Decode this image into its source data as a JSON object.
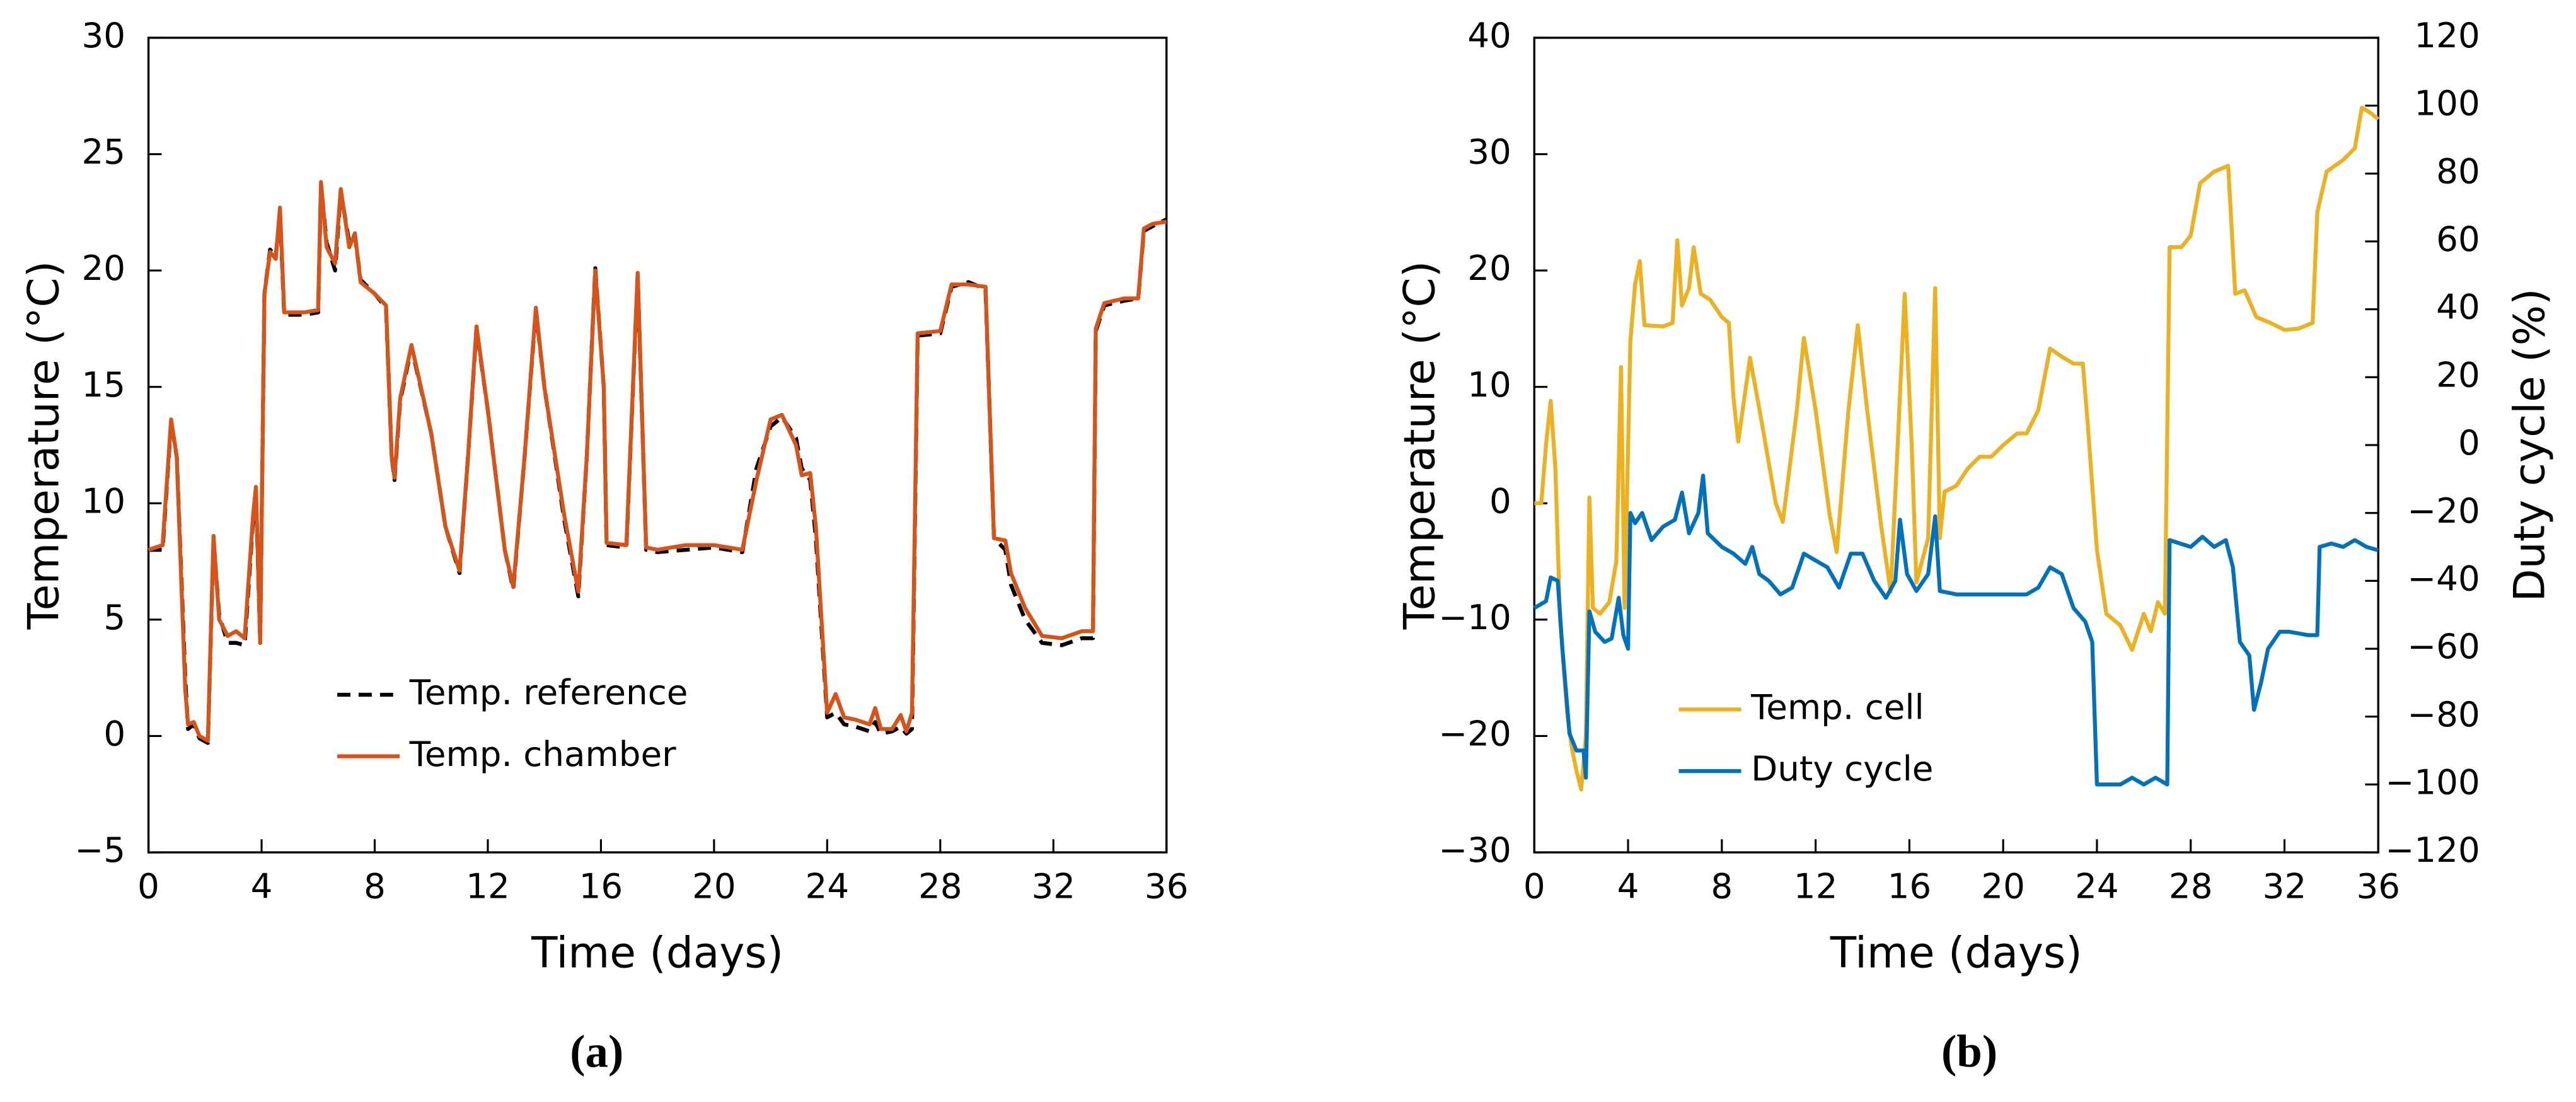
{
  "chart_data": [
    {
      "type": "line",
      "label": "(a)",
      "xlabel": "Time (days)",
      "ylabel": "Temperature (°C)",
      "xlim": [
        0,
        36
      ],
      "xticks": [
        0,
        4,
        8,
        12,
        16,
        20,
        24,
        28,
        32,
        36
      ],
      "ylim": [
        -5,
        30
      ],
      "yticks": [
        {
          "value": -5,
          "label": "−5"
        },
        0,
        5,
        10,
        15,
        20,
        25,
        30
      ],
      "x": [
        0,
        0.5,
        0.8,
        1.0,
        1.3,
        1.4,
        1.6,
        1.8,
        2.1,
        2.3,
        2.5,
        2.8,
        3.1,
        3.4,
        3.7,
        3.8,
        3.95,
        4.1,
        4.3,
        4.5,
        4.65,
        4.8,
        5.5,
        6.0,
        6.1,
        6.3,
        6.6,
        6.8,
        7.1,
        7.3,
        7.5,
        8.0,
        8.4,
        8.6,
        8.7,
        8.9,
        9.3,
        10,
        10.5,
        11,
        11.3,
        11.6,
        12,
        12.6,
        12.9,
        13.3,
        13.7,
        14,
        14.7,
        15.2,
        15.5,
        15.8,
        16.1,
        16.2,
        16.9,
        17.3,
        17.6,
        18,
        19,
        20,
        21,
        21.5,
        22,
        22.4,
        22.9,
        23.1,
        23.4,
        23.6,
        24,
        24.3,
        24.6,
        25,
        25.5,
        25.7,
        25.9,
        26.3,
        26.6,
        26.8,
        27.0,
        27.2,
        28,
        28.4,
        29,
        29.6,
        29.9,
        30.3,
        30.5,
        31,
        31.6,
        32.3,
        33,
        33.4,
        33.5,
        33.8,
        34.5,
        35,
        35.2,
        35.5,
        36
      ],
      "series": [
        {
          "name": "Temp. reference",
          "color": "#000000",
          "linestyle": "dashed",
          "values": [
            8,
            8,
            13.5,
            12,
            2.5,
            0.3,
            0.5,
            -0.1,
            -0.3,
            8.4,
            5.2,
            4,
            4,
            3.9,
            9.3,
            10.5,
            4,
            19,
            20.9,
            20.6,
            22.5,
            18.1,
            18.1,
            18.2,
            23.7,
            21.2,
            20,
            23.4,
            21.2,
            21.5,
            19.6,
            19,
            18.4,
            12,
            11,
            14.4,
            16.7,
            13,
            9,
            7,
            12,
            17.5,
            14,
            8,
            6.3,
            12,
            18.3,
            15,
            9.3,
            6,
            12,
            20.1,
            15,
            8.2,
            8.1,
            19.8,
            8,
            7.9,
            8,
            8.1,
            7.9,
            11.5,
            13.3,
            13.7,
            12.8,
            11.5,
            11,
            8.5,
            0.8,
            1,
            0.5,
            0.4,
            0.2,
            0.6,
            0.1,
            0.2,
            0.4,
            0.1,
            0.3,
            17.2,
            17.3,
            19.3,
            19.5,
            19.2,
            8.5,
            8,
            6.5,
            5,
            4,
            3.9,
            4.2,
            4.2,
            17.4,
            18.5,
            18.7,
            18.8,
            21.7,
            21.9,
            22.2
          ]
        },
        {
          "name": "Temp. chamber",
          "color": "#d95319",
          "linestyle": "solid",
          "values": [
            8,
            8.2,
            13.6,
            12,
            2,
            0.5,
            0.6,
            0,
            -0.2,
            8.6,
            5,
            4.3,
            4.5,
            4.2,
            9.5,
            10.7,
            4,
            19,
            20.8,
            20.5,
            22.7,
            18.2,
            18.2,
            18.3,
            23.8,
            21,
            20.3,
            23.5,
            21,
            21.6,
            19.5,
            19,
            18.5,
            12,
            11.1,
            14.5,
            16.8,
            13,
            9,
            7.1,
            12,
            17.6,
            14,
            8,
            6.4,
            12,
            18.4,
            15,
            9.5,
            6.2,
            12,
            20,
            15,
            8.3,
            8.2,
            19.9,
            8.1,
            8,
            8.2,
            8.2,
            8,
            11,
            13.6,
            13.8,
            12.5,
            11.2,
            11.3,
            9,
            1,
            1.8,
            0.8,
            0.7,
            0.5,
            1.2,
            0.3,
            0.3,
            0.9,
            0.2,
            1,
            17.3,
            17.4,
            19.4,
            19.4,
            19.3,
            8.5,
            8.4,
            7,
            5.5,
            4.3,
            4.2,
            4.5,
            4.5,
            17.5,
            18.6,
            18.8,
            18.8,
            21.8,
            22,
            22.1
          ]
        }
      ]
    },
    {
      "type": "line",
      "label": "(b)",
      "xlabel": "Time (days)",
      "ylabel": "Temperature (°C)",
      "y2label": "Duty cycle (%)",
      "xlim": [
        0,
        36
      ],
      "xticks": [
        0,
        4,
        8,
        12,
        16,
        20,
        24,
        28,
        32,
        36
      ],
      "ylim": [
        -30,
        40
      ],
      "yticks": [
        {
          "value": -30,
          "label": "−30"
        },
        {
          "value": -20,
          "label": "−20"
        },
        {
          "value": -10,
          "label": "−10"
        },
        0,
        10,
        20,
        30,
        40
      ],
      "y2lim": [
        -120,
        120
      ],
      "y2ticks": [
        {
          "value": -120,
          "label": "−120"
        },
        {
          "value": -100,
          "label": "−100"
        },
        {
          "value": -80,
          "label": "−80"
        },
        {
          "value": -60,
          "label": "−60"
        },
        {
          "value": -40,
          "label": "−40"
        },
        {
          "value": -20,
          "label": "−20"
        },
        0,
        20,
        40,
        60,
        80,
        100,
        120
      ],
      "series": [
        {
          "name": "Temp. cell",
          "color": "#edb120",
          "linestyle": "solid",
          "x": [
            0,
            0.3,
            0.5,
            0.7,
            0.9,
            1.1,
            1.4,
            1.6,
            1.8,
            2.0,
            2.2,
            2.35,
            2.5,
            2.8,
            3.2,
            3.5,
            3.7,
            3.85,
            4.1,
            4.3,
            4.5,
            4.7,
            5.5,
            5.9,
            6.1,
            6.3,
            6.6,
            6.8,
            7.1,
            7.5,
            8,
            8.3,
            8.5,
            8.7,
            9.2,
            9.7,
            10.3,
            10.6,
            11.2,
            11.5,
            12,
            12.6,
            12.9,
            13.4,
            13.8,
            14.2,
            14.8,
            15.2,
            15.5,
            15.8,
            16.1,
            16.3,
            16.8,
            17.1,
            17.3,
            17.5,
            18,
            18.5,
            19,
            19.5,
            20,
            20.6,
            21,
            21.5,
            22,
            22.5,
            23,
            23.4,
            23.6,
            24,
            24.4,
            25,
            25.5,
            26,
            26.3,
            26.6,
            26.9,
            27.1,
            27.6,
            28,
            28.4,
            29,
            29.6,
            29.9,
            30.3,
            30.8,
            31.4,
            32,
            32.6,
            33.2,
            33.4,
            33.8,
            34.5,
            35,
            35.3,
            35.7,
            36
          ],
          "values": [
            0,
            0,
            5,
            8.8,
            3,
            -10,
            -18,
            -21,
            -23,
            -24.6,
            -20,
            0.5,
            -9,
            -9.5,
            -8.5,
            -5,
            11.7,
            -9,
            14,
            18.8,
            20.8,
            15.3,
            15.2,
            15.5,
            22.6,
            17,
            18.5,
            22,
            18,
            17.5,
            16,
            15.5,
            9,
            5.3,
            12.5,
            7,
            0,
            -1.6,
            8,
            14.2,
            8,
            -1,
            -4.2,
            8,
            15.3,
            8,
            -2,
            -7.6,
            5,
            18,
            5,
            -6.8,
            -3,
            18.5,
            -3,
            1,
            1.5,
            3,
            4,
            4,
            5,
            6,
            6,
            8,
            13.3,
            12.6,
            12,
            12,
            7,
            -4,
            -9.5,
            -10.5,
            -12.6,
            -9.5,
            -11,
            -8.5,
            -9.5,
            22,
            22,
            23,
            27.5,
            28.5,
            29,
            18,
            18.3,
            16,
            15.5,
            14.9,
            15,
            15.5,
            25,
            28.5,
            29.5,
            30.5,
            34,
            33.5,
            33
          ]
        },
        {
          "name": "Duty cycle",
          "color": "#0072bd",
          "linestyle": "solid",
          "axis": "y2",
          "x": [
            0,
            0.5,
            0.7,
            1.0,
            1.2,
            1.5,
            1.8,
            2.1,
            2.2,
            2.35,
            2.6,
            3.0,
            3.3,
            3.6,
            3.8,
            4.0,
            4.1,
            4.3,
            4.6,
            5,
            5.5,
            6,
            6.3,
            6.6,
            7,
            7.2,
            7.4,
            8,
            8.5,
            9,
            9.3,
            9.6,
            10,
            10.5,
            11,
            11.5,
            12,
            12.5,
            13,
            13.5,
            14,
            14.5,
            15,
            15.4,
            15.6,
            15.9,
            16.3,
            16.8,
            17.1,
            17.3,
            18,
            19,
            20,
            21,
            21.5,
            22,
            22.5,
            23,
            23.5,
            23.8,
            24,
            25,
            25.5,
            26,
            26.5,
            27,
            27.1,
            28,
            28.5,
            29,
            29.5,
            29.8,
            30.1,
            30.5,
            30.7,
            31,
            31.3,
            31.8,
            32.2,
            33,
            33.4,
            33.5,
            34,
            34.5,
            35,
            35.5,
            36
          ],
          "values": [
            -48,
            -46,
            -39,
            -40,
            -60,
            -85,
            -90,
            -90,
            -98,
            -49,
            -55,
            -58,
            -57,
            -45,
            -56,
            -60,
            -20,
            -23,
            -20,
            -28,
            -24,
            -22,
            -14,
            -26,
            -20,
            -9,
            -26,
            -30,
            -32,
            -35,
            -30,
            -38,
            -40,
            -44,
            -42,
            -32,
            -34,
            -36,
            -42,
            -32,
            -32,
            -40,
            -45,
            -40,
            -22,
            -38,
            -43,
            -38,
            -21,
            -43,
            -44,
            -44,
            -44,
            -44,
            -42,
            -36,
            -38,
            -48,
            -52,
            -58,
            -100,
            -100,
            -98,
            -100,
            -98,
            -100,
            -28,
            -30,
            -27,
            -30,
            -28,
            -36,
            -58,
            -62,
            -78,
            -70,
            -60,
            -55,
            -55,
            -56,
            -56,
            -30,
            -29,
            -30,
            -28,
            -30,
            -31
          ]
        }
      ]
    }
  ]
}
